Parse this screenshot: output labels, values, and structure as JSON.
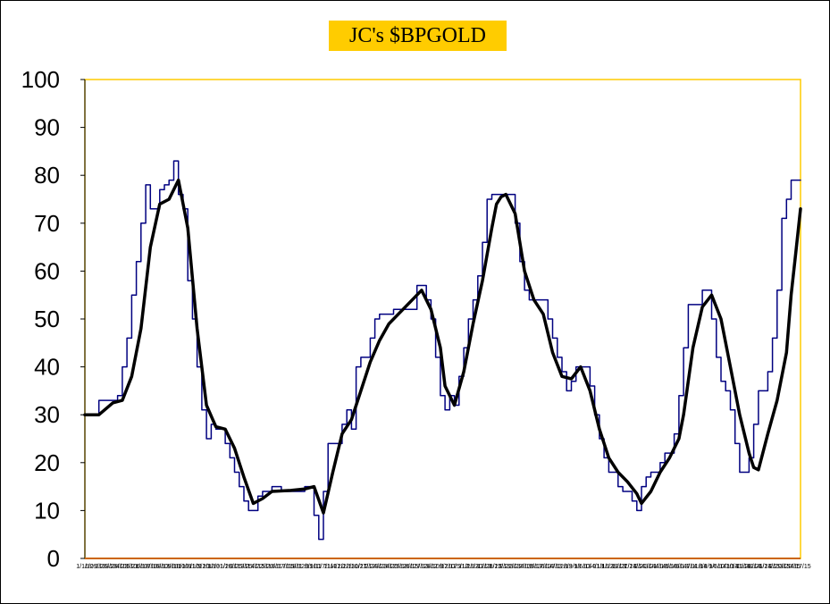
{
  "chart_data": {
    "type": "line",
    "title": "JC's $BPGOLD",
    "xlabel": "",
    "ylabel": "",
    "ylim": [
      0,
      100
    ],
    "yticks": [
      0,
      10,
      20,
      30,
      40,
      50,
      60,
      70,
      80,
      90,
      100
    ],
    "grid": false,
    "legend": "none",
    "x_tick_labels": [
      "1/1/10",
      "1/29/10",
      "2/26/10",
      "3/26/10",
      "4/23/10",
      "5/21/10",
      "6/18/10",
      "7/16/10",
      "8/13/10",
      "9/10/10",
      "10/8/10",
      "11/5/10",
      "12/3/10",
      "12/31/10",
      "1/28/11",
      "2/25/11",
      "3/25/11",
      "4/22/11",
      "5/20/11",
      "6/17/11",
      "7/15/11",
      "8/12/11",
      "9/9/11",
      "10/7/11",
      "11/4/11",
      "12/2/11",
      "12/30/11",
      "1/27/12",
      "2/24/12",
      "3/23/12",
      "4/20/12",
      "5/18/12",
      "6/15/12",
      "7/13/12",
      "8/10/12",
      "9/7/12",
      "10/5/12",
      "11/2/12",
      "11/30/12",
      "12/28/12",
      "1/25/13",
      "2/22/13",
      "3/22/13",
      "4/19/13",
      "5/17/13",
      "6/14/13",
      "7/12/13",
      "8/9/13",
      "9/6/13",
      "10/4/13",
      "11/1/13",
      "11/29/13",
      "12/27/13",
      "1/24/14",
      "2/21/14",
      "3/21/14",
      "4/18/14",
      "5/16/14",
      "6/13/14",
      "7/11/14",
      "8/8/14",
      "9/5/14",
      "10/3/14",
      "10/31/14",
      "11/28/14",
      "12/26/14",
      "1/23/15",
      "2/20/15",
      "3/20/15",
      "4/17/15"
    ],
    "series": [
      {
        "color": "#000080",
        "width": 1.5,
        "points": [
          [
            0,
            30
          ],
          [
            3,
            30
          ],
          [
            3,
            33
          ],
          [
            7,
            33
          ],
          [
            7,
            34
          ],
          [
            8,
            34
          ],
          [
            8,
            40
          ],
          [
            9,
            40
          ],
          [
            9,
            46
          ],
          [
            10,
            46
          ],
          [
            10,
            55
          ],
          [
            11,
            55
          ],
          [
            11,
            62
          ],
          [
            12,
            62
          ],
          [
            12,
            70
          ],
          [
            13,
            70
          ],
          [
            13,
            78
          ],
          [
            14,
            78
          ],
          [
            14,
            73
          ],
          [
            16,
            73
          ],
          [
            16,
            77
          ],
          [
            17,
            77
          ],
          [
            17,
            78
          ],
          [
            18,
            78
          ],
          [
            18,
            79
          ],
          [
            19,
            79
          ],
          [
            19,
            83
          ],
          [
            20,
            83
          ],
          [
            20,
            76
          ],
          [
            21,
            76
          ],
          [
            21,
            73
          ],
          [
            22,
            73
          ],
          [
            22,
            58
          ],
          [
            23,
            58
          ],
          [
            23,
            50
          ],
          [
            24,
            50
          ],
          [
            24,
            40
          ],
          [
            25,
            40
          ],
          [
            25,
            31
          ],
          [
            26,
            31
          ],
          [
            26,
            25
          ],
          [
            27,
            25
          ],
          [
            27,
            28
          ],
          [
            28,
            28
          ],
          [
            28,
            27
          ],
          [
            30,
            27
          ],
          [
            30,
            24
          ],
          [
            31,
            24
          ],
          [
            31,
            21
          ],
          [
            32,
            21
          ],
          [
            32,
            18
          ],
          [
            33,
            18
          ],
          [
            33,
            15
          ],
          [
            34,
            15
          ],
          [
            34,
            12
          ],
          [
            35,
            12
          ],
          [
            35,
            10
          ],
          [
            37,
            10
          ],
          [
            37,
            13
          ],
          [
            38,
            13
          ],
          [
            38,
            14
          ],
          [
            40,
            14
          ],
          [
            40,
            15
          ],
          [
            42,
            15
          ],
          [
            42,
            14
          ],
          [
            47,
            14
          ],
          [
            47,
            15
          ],
          [
            49,
            15
          ],
          [
            49,
            9
          ],
          [
            50,
            9
          ],
          [
            50,
            4
          ],
          [
            51,
            4
          ],
          [
            51,
            14
          ],
          [
            52,
            14
          ],
          [
            52,
            24
          ],
          [
            55,
            24
          ],
          [
            55,
            28
          ],
          [
            56,
            28
          ],
          [
            56,
            31
          ],
          [
            57,
            31
          ],
          [
            57,
            27
          ],
          [
            58,
            27
          ],
          [
            58,
            40
          ],
          [
            59,
            40
          ],
          [
            59,
            42
          ],
          [
            61,
            42
          ],
          [
            61,
            46
          ],
          [
            62,
            46
          ],
          [
            62,
            50
          ],
          [
            63,
            50
          ],
          [
            63,
            51
          ],
          [
            66,
            51
          ],
          [
            66,
            52
          ],
          [
            71,
            52
          ],
          [
            71,
            57
          ],
          [
            73,
            57
          ],
          [
            73,
            54
          ],
          [
            74,
            54
          ],
          [
            74,
            50
          ],
          [
            75,
            50
          ],
          [
            75,
            42
          ],
          [
            76,
            42
          ],
          [
            76,
            34
          ],
          [
            77,
            34
          ],
          [
            77,
            31
          ],
          [
            78,
            31
          ],
          [
            78,
            34
          ],
          [
            79,
            34
          ],
          [
            79,
            32
          ],
          [
            80,
            32
          ],
          [
            80,
            38
          ],
          [
            81,
            38
          ],
          [
            81,
            44
          ],
          [
            82,
            44
          ],
          [
            82,
            50
          ],
          [
            83,
            50
          ],
          [
            83,
            54
          ],
          [
            84,
            54
          ],
          [
            84,
            59
          ],
          [
            85,
            59
          ],
          [
            85,
            66
          ],
          [
            86,
            66
          ],
          [
            86,
            75
          ],
          [
            87,
            75
          ],
          [
            87,
            76
          ],
          [
            92,
            76
          ],
          [
            92,
            70
          ],
          [
            93,
            70
          ],
          [
            93,
            62
          ],
          [
            94,
            62
          ],
          [
            94,
            56
          ],
          [
            95,
            56
          ],
          [
            95,
            54
          ],
          [
            99,
            54
          ],
          [
            99,
            50
          ],
          [
            100,
            50
          ],
          [
            100,
            46
          ],
          [
            101,
            46
          ],
          [
            101,
            42
          ],
          [
            102,
            42
          ],
          [
            102,
            39
          ],
          [
            103,
            39
          ],
          [
            103,
            35
          ],
          [
            104,
            35
          ],
          [
            104,
            37
          ],
          [
            105,
            37
          ],
          [
            105,
            40
          ],
          [
            108,
            40
          ],
          [
            108,
            36
          ],
          [
            109,
            36
          ],
          [
            109,
            30
          ],
          [
            110,
            30
          ],
          [
            110,
            25
          ],
          [
            111,
            25
          ],
          [
            111,
            21
          ],
          [
            112,
            21
          ],
          [
            112,
            18
          ],
          [
            114,
            18
          ],
          [
            114,
            15
          ],
          [
            115,
            15
          ],
          [
            115,
            14
          ],
          [
            117,
            14
          ],
          [
            117,
            12
          ],
          [
            118,
            12
          ],
          [
            118,
            10
          ],
          [
            119,
            10
          ],
          [
            119,
            15
          ],
          [
            120,
            15
          ],
          [
            120,
            17
          ],
          [
            121,
            17
          ],
          [
            121,
            18
          ],
          [
            123,
            18
          ],
          [
            123,
            20
          ],
          [
            124,
            20
          ],
          [
            124,
            22
          ],
          [
            126,
            22
          ],
          [
            126,
            26
          ],
          [
            127,
            26
          ],
          [
            127,
            34
          ],
          [
            128,
            34
          ],
          [
            128,
            44
          ],
          [
            129,
            44
          ],
          [
            129,
            53
          ],
          [
            132,
            53
          ],
          [
            132,
            56
          ],
          [
            134,
            56
          ],
          [
            134,
            50
          ],
          [
            135,
            50
          ],
          [
            135,
            42
          ],
          [
            136,
            42
          ],
          [
            136,
            37
          ],
          [
            137,
            37
          ],
          [
            137,
            35
          ],
          [
            138,
            35
          ],
          [
            138,
            31
          ],
          [
            139,
            31
          ],
          [
            139,
            24
          ],
          [
            140,
            24
          ],
          [
            140,
            18
          ],
          [
            142,
            18
          ],
          [
            142,
            21
          ],
          [
            143,
            21
          ],
          [
            143,
            28
          ],
          [
            144,
            28
          ],
          [
            144,
            35
          ],
          [
            146,
            35
          ],
          [
            146,
            39
          ],
          [
            147,
            39
          ],
          [
            147,
            46
          ],
          [
            148,
            46
          ],
          [
            148,
            56
          ],
          [
            149,
            56
          ],
          [
            149,
            71
          ],
          [
            150,
            71
          ],
          [
            150,
            75
          ],
          [
            151,
            75
          ],
          [
            151,
            79
          ],
          [
            153,
            79
          ]
        ]
      },
      {
        "color": "#000000",
        "width": 3.5,
        "points": [
          [
            0,
            30
          ],
          [
            3,
            30
          ],
          [
            6,
            32.5
          ],
          [
            8,
            33
          ],
          [
            10,
            38
          ],
          [
            12,
            48
          ],
          [
            14,
            65
          ],
          [
            16,
            74
          ],
          [
            18,
            75
          ],
          [
            20,
            79
          ],
          [
            22,
            69
          ],
          [
            24,
            48
          ],
          [
            26,
            32
          ],
          [
            28,
            27.5
          ],
          [
            30,
            27
          ],
          [
            32,
            23
          ],
          [
            34,
            17
          ],
          [
            36,
            11.5
          ],
          [
            38,
            12.5
          ],
          [
            40,
            14
          ],
          [
            44,
            14.2
          ],
          [
            47,
            14.5
          ],
          [
            49,
            15
          ],
          [
            51,
            9.5
          ],
          [
            53,
            18
          ],
          [
            55,
            26
          ],
          [
            57,
            29
          ],
          [
            59,
            35
          ],
          [
            61,
            41
          ],
          [
            63,
            45.5
          ],
          [
            65,
            49
          ],
          [
            68,
            52
          ],
          [
            72,
            56
          ],
          [
            74,
            52
          ],
          [
            76,
            44
          ],
          [
            77,
            36
          ],
          [
            79,
            32
          ],
          [
            81,
            39
          ],
          [
            83,
            49
          ],
          [
            85,
            58
          ],
          [
            87,
            69
          ],
          [
            88,
            74
          ],
          [
            89,
            75.5
          ],
          [
            90,
            76
          ],
          [
            92,
            72
          ],
          [
            94,
            60
          ],
          [
            96,
            54
          ],
          [
            98,
            51
          ],
          [
            100,
            43
          ],
          [
            102,
            38
          ],
          [
            104,
            37.5
          ],
          [
            106,
            40
          ],
          [
            108,
            35
          ],
          [
            110,
            27
          ],
          [
            112,
            21
          ],
          [
            114,
            18
          ],
          [
            116,
            16
          ],
          [
            118,
            13.5
          ],
          [
            119,
            11.5
          ],
          [
            121,
            14
          ],
          [
            123,
            18
          ],
          [
            125,
            21
          ],
          [
            127,
            25
          ],
          [
            128,
            30
          ],
          [
            130,
            44
          ],
          [
            132,
            52.5
          ],
          [
            134,
            55
          ],
          [
            136,
            50
          ],
          [
            138,
            40
          ],
          [
            140,
            30
          ],
          [
            142,
            22
          ],
          [
            143,
            19
          ],
          [
            144,
            18.5
          ],
          [
            146,
            26
          ],
          [
            148,
            33
          ],
          [
            150,
            43
          ],
          [
            151,
            55
          ],
          [
            152,
            64
          ],
          [
            153,
            73
          ]
        ]
      }
    ]
  }
}
